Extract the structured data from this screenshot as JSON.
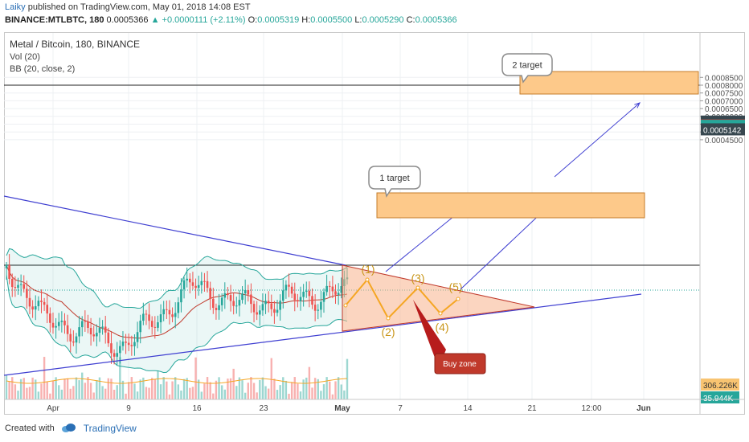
{
  "header": {
    "user": "Laiky",
    "published": "published on TradingView.com, May 01, 2018 14:08 EST",
    "symbol": "BINANCE:MTLBTC, 180",
    "last": "0.0005366",
    "change": "+0.0000111 (+2.11%)",
    "open_label": "O:",
    "open": "0.0005319",
    "high_label": "H:",
    "high": "0.0005500",
    "low_label": "L:",
    "low": "0.0005290",
    "close_label": "C:",
    "close": "0.0005366"
  },
  "legend": {
    "title": "Metal / Bitcoin, 180, BINANCE",
    "vol": "Vol (20)",
    "bb": "BB (20, close, 2)"
  },
  "footer": {
    "created_with": "Created with",
    "brand": "TradingView"
  },
  "chart_data": {
    "type": "line",
    "title": "Metal / Bitcoin, 180, BINANCE",
    "x_ticks": [
      "Apr",
      "9",
      "16",
      "23",
      "May",
      "7",
      "14",
      "21",
      "12:00",
      "Jun"
    ],
    "y_ticks": [
      "0.0008500",
      "0.0008000",
      "0.0007500",
      "0.0007000",
      "0.0006500",
      "0.0006000",
      "0.0005500",
      "0.0005000",
      "0.0004500"
    ],
    "ylim": [
      0.00042,
      0.00088
    ],
    "price_labels": [
      {
        "text": "0.0005639",
        "value": 0.0005639,
        "color": "#37474f"
      },
      {
        "text": "0.0005391",
        "value": 0.0005391,
        "color": "#e53935"
      },
      {
        "text": "0.0005366",
        "value": 0.0005366,
        "color": "#26a69a"
      },
      {
        "text": "0.0005142",
        "value": 0.0005142,
        "color": "#37474f"
      }
    ],
    "volume_labels": [
      {
        "text": "306.226K",
        "color": "#f8c471",
        "text_color": "#333333"
      },
      {
        "text": "35.944K",
        "color": "#26a69a",
        "text_color": "#ffffff"
      }
    ],
    "annotations": {
      "wave_labels": [
        "(1)",
        "(2)",
        "(3)",
        "(4)",
        "(5)"
      ],
      "target1": "1 target",
      "target2": "2 target",
      "buy_zone": "Buy zone"
    },
    "colors": {
      "up": "#26a69a",
      "down": "#ef5350",
      "trendline": "#3f3fd1",
      "target_box": "#fdc98a",
      "wave": "#f5a623"
    }
  }
}
